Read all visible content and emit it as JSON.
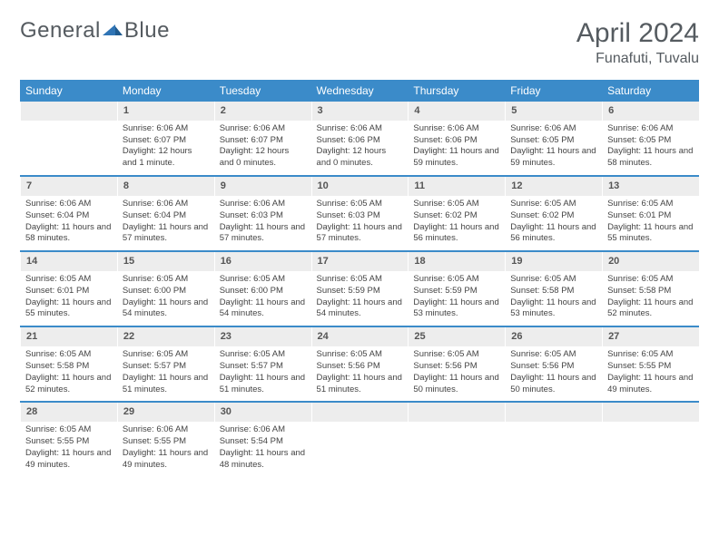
{
  "logo": {
    "part1": "General",
    "part2": "Blue",
    "accent_color": "#2f74b5"
  },
  "header": {
    "month_title": "April 2024",
    "location": "Funafuti, Tuvalu"
  },
  "colors": {
    "header_bg": "#3b8bc9",
    "header_text": "#ffffff",
    "daynum_bg": "#ededed",
    "text": "#444",
    "rule": "#3b8bc9"
  },
  "day_names": [
    "Sunday",
    "Monday",
    "Tuesday",
    "Wednesday",
    "Thursday",
    "Friday",
    "Saturday"
  ],
  "weeks": [
    [
      null,
      {
        "n": "1",
        "sr": "Sunrise: 6:06 AM",
        "ss": "Sunset: 6:07 PM",
        "dl": "Daylight: 12 hours and 1 minute."
      },
      {
        "n": "2",
        "sr": "Sunrise: 6:06 AM",
        "ss": "Sunset: 6:07 PM",
        "dl": "Daylight: 12 hours and 0 minutes."
      },
      {
        "n": "3",
        "sr": "Sunrise: 6:06 AM",
        "ss": "Sunset: 6:06 PM",
        "dl": "Daylight: 12 hours and 0 minutes."
      },
      {
        "n": "4",
        "sr": "Sunrise: 6:06 AM",
        "ss": "Sunset: 6:06 PM",
        "dl": "Daylight: 11 hours and 59 minutes."
      },
      {
        "n": "5",
        "sr": "Sunrise: 6:06 AM",
        "ss": "Sunset: 6:05 PM",
        "dl": "Daylight: 11 hours and 59 minutes."
      },
      {
        "n": "6",
        "sr": "Sunrise: 6:06 AM",
        "ss": "Sunset: 6:05 PM",
        "dl": "Daylight: 11 hours and 58 minutes."
      }
    ],
    [
      {
        "n": "7",
        "sr": "Sunrise: 6:06 AM",
        "ss": "Sunset: 6:04 PM",
        "dl": "Daylight: 11 hours and 58 minutes."
      },
      {
        "n": "8",
        "sr": "Sunrise: 6:06 AM",
        "ss": "Sunset: 6:04 PM",
        "dl": "Daylight: 11 hours and 57 minutes."
      },
      {
        "n": "9",
        "sr": "Sunrise: 6:06 AM",
        "ss": "Sunset: 6:03 PM",
        "dl": "Daylight: 11 hours and 57 minutes."
      },
      {
        "n": "10",
        "sr": "Sunrise: 6:05 AM",
        "ss": "Sunset: 6:03 PM",
        "dl": "Daylight: 11 hours and 57 minutes."
      },
      {
        "n": "11",
        "sr": "Sunrise: 6:05 AM",
        "ss": "Sunset: 6:02 PM",
        "dl": "Daylight: 11 hours and 56 minutes."
      },
      {
        "n": "12",
        "sr": "Sunrise: 6:05 AM",
        "ss": "Sunset: 6:02 PM",
        "dl": "Daylight: 11 hours and 56 minutes."
      },
      {
        "n": "13",
        "sr": "Sunrise: 6:05 AM",
        "ss": "Sunset: 6:01 PM",
        "dl": "Daylight: 11 hours and 55 minutes."
      }
    ],
    [
      {
        "n": "14",
        "sr": "Sunrise: 6:05 AM",
        "ss": "Sunset: 6:01 PM",
        "dl": "Daylight: 11 hours and 55 minutes."
      },
      {
        "n": "15",
        "sr": "Sunrise: 6:05 AM",
        "ss": "Sunset: 6:00 PM",
        "dl": "Daylight: 11 hours and 54 minutes."
      },
      {
        "n": "16",
        "sr": "Sunrise: 6:05 AM",
        "ss": "Sunset: 6:00 PM",
        "dl": "Daylight: 11 hours and 54 minutes."
      },
      {
        "n": "17",
        "sr": "Sunrise: 6:05 AM",
        "ss": "Sunset: 5:59 PM",
        "dl": "Daylight: 11 hours and 54 minutes."
      },
      {
        "n": "18",
        "sr": "Sunrise: 6:05 AM",
        "ss": "Sunset: 5:59 PM",
        "dl": "Daylight: 11 hours and 53 minutes."
      },
      {
        "n": "19",
        "sr": "Sunrise: 6:05 AM",
        "ss": "Sunset: 5:58 PM",
        "dl": "Daylight: 11 hours and 53 minutes."
      },
      {
        "n": "20",
        "sr": "Sunrise: 6:05 AM",
        "ss": "Sunset: 5:58 PM",
        "dl": "Daylight: 11 hours and 52 minutes."
      }
    ],
    [
      {
        "n": "21",
        "sr": "Sunrise: 6:05 AM",
        "ss": "Sunset: 5:58 PM",
        "dl": "Daylight: 11 hours and 52 minutes."
      },
      {
        "n": "22",
        "sr": "Sunrise: 6:05 AM",
        "ss": "Sunset: 5:57 PM",
        "dl": "Daylight: 11 hours and 51 minutes."
      },
      {
        "n": "23",
        "sr": "Sunrise: 6:05 AM",
        "ss": "Sunset: 5:57 PM",
        "dl": "Daylight: 11 hours and 51 minutes."
      },
      {
        "n": "24",
        "sr": "Sunrise: 6:05 AM",
        "ss": "Sunset: 5:56 PM",
        "dl": "Daylight: 11 hours and 51 minutes."
      },
      {
        "n": "25",
        "sr": "Sunrise: 6:05 AM",
        "ss": "Sunset: 5:56 PM",
        "dl": "Daylight: 11 hours and 50 minutes."
      },
      {
        "n": "26",
        "sr": "Sunrise: 6:05 AM",
        "ss": "Sunset: 5:56 PM",
        "dl": "Daylight: 11 hours and 50 minutes."
      },
      {
        "n": "27",
        "sr": "Sunrise: 6:05 AM",
        "ss": "Sunset: 5:55 PM",
        "dl": "Daylight: 11 hours and 49 minutes."
      }
    ],
    [
      {
        "n": "28",
        "sr": "Sunrise: 6:05 AM",
        "ss": "Sunset: 5:55 PM",
        "dl": "Daylight: 11 hours and 49 minutes."
      },
      {
        "n": "29",
        "sr": "Sunrise: 6:06 AM",
        "ss": "Sunset: 5:55 PM",
        "dl": "Daylight: 11 hours and 49 minutes."
      },
      {
        "n": "30",
        "sr": "Sunrise: 6:06 AM",
        "ss": "Sunset: 5:54 PM",
        "dl": "Daylight: 11 hours and 48 minutes."
      },
      null,
      null,
      null,
      null
    ]
  ]
}
